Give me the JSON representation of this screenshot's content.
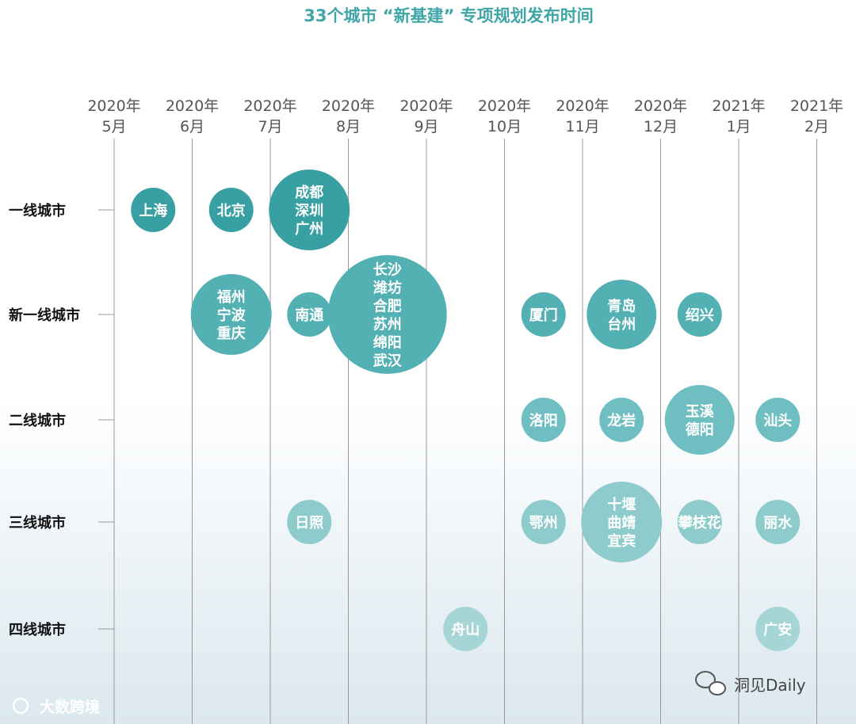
{
  "watermarks": {
    "right": "洞见Daily",
    "left": "大数跨境"
  },
  "colors": {
    "title": "#3fa5a7",
    "tier1": "#38a0a2",
    "tier2": "#53b0b3",
    "tier3": "#6fbec1",
    "tier4": "#8ecbcd",
    "tier5": "#a6d5d6",
    "grid": "#999999"
  },
  "chart_data": {
    "type": "scatter",
    "title": "33个城市 “新基建” 专项规划发布时间",
    "x_categories": [
      {
        "year": "2020年",
        "month": "5月"
      },
      {
        "year": "2020年",
        "month": "6月"
      },
      {
        "year": "2020年",
        "month": "7月"
      },
      {
        "year": "2020年",
        "month": "8月"
      },
      {
        "year": "2020年",
        "month": "9月"
      },
      {
        "year": "2020年",
        "month": "10月"
      },
      {
        "year": "2020年",
        "month": "11月"
      },
      {
        "year": "2020年",
        "month": "12月"
      },
      {
        "year": "2021年",
        "month": "1月"
      },
      {
        "year": "2021年",
        "month": "2月"
      }
    ],
    "y_categories": [
      "一线城市",
      "新一线城市",
      "二线城市",
      "三线城市",
      "四线城市"
    ],
    "points": [
      {
        "tier": 0,
        "month": 0.5,
        "cities": [
          "上海"
        ]
      },
      {
        "tier": 0,
        "month": 1.5,
        "cities": [
          "北京"
        ]
      },
      {
        "tier": 0,
        "month": 2.5,
        "cities": [
          "成都",
          "深圳",
          "广州"
        ]
      },
      {
        "tier": 1,
        "month": 1.5,
        "cities": [
          "福州",
          "宁波",
          "重庆"
        ]
      },
      {
        "tier": 1,
        "month": 2.5,
        "cities": [
          "南通"
        ]
      },
      {
        "tier": 1,
        "month": 3.5,
        "cities": [
          "长沙",
          "潍坊",
          "合肥",
          "苏州",
          "绵阳",
          "武汉"
        ]
      },
      {
        "tier": 1,
        "month": 5.5,
        "cities": [
          "厦门"
        ]
      },
      {
        "tier": 1,
        "month": 6.5,
        "cities": [
          "青岛",
          "台州"
        ]
      },
      {
        "tier": 1,
        "month": 7.5,
        "cities": [
          "绍兴"
        ]
      },
      {
        "tier": 2,
        "month": 5.5,
        "cities": [
          "洛阳"
        ]
      },
      {
        "tier": 2,
        "month": 6.5,
        "cities": [
          "龙岩"
        ]
      },
      {
        "tier": 2,
        "month": 7.5,
        "cities": [
          "玉溪",
          "德阳"
        ]
      },
      {
        "tier": 2,
        "month": 8.5,
        "cities": [
          "汕头"
        ]
      },
      {
        "tier": 3,
        "month": 2.5,
        "cities": [
          "日照"
        ]
      },
      {
        "tier": 3,
        "month": 5.5,
        "cities": [
          "鄂州"
        ]
      },
      {
        "tier": 3,
        "month": 6.5,
        "cities": [
          "十堰",
          "曲靖",
          "宜宾"
        ]
      },
      {
        "tier": 3,
        "month": 7.5,
        "cities": [
          "攀枝花"
        ]
      },
      {
        "tier": 3,
        "month": 8.5,
        "cities": [
          "丽水"
        ]
      },
      {
        "tier": 4,
        "month": 4.5,
        "cities": [
          "舟山"
        ]
      },
      {
        "tier": 4,
        "month": 8.5,
        "cities": [
          "广安"
        ]
      }
    ]
  }
}
